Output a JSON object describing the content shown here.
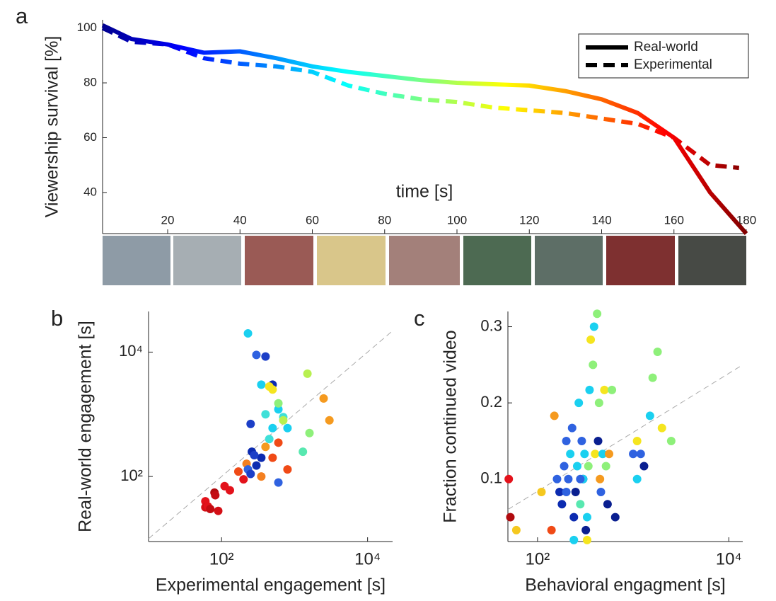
{
  "chart_data": [
    {
      "panel": "a",
      "type": "line",
      "xlabel": "time [s]",
      "ylabel": "Viewership survival [%]",
      "xlim": [
        2,
        180
      ],
      "ylim": [
        25,
        103
      ],
      "xticks": [
        20,
        40,
        60,
        80,
        100,
        120,
        140,
        160,
        180
      ],
      "yticks": [
        40,
        60,
        80,
        100
      ],
      "colormap": "jet",
      "legend": "upper right",
      "series": [
        {
          "name": "Real-world",
          "style": "solid",
          "x": [
            2,
            10,
            20,
            30,
            40,
            50,
            60,
            70,
            80,
            90,
            100,
            110,
            120,
            130,
            140,
            150,
            160,
            170,
            180
          ],
          "values": [
            101,
            96,
            94,
            91,
            91.5,
            89,
            86,
            84,
            82.5,
            81,
            80,
            79.5,
            79,
            77,
            74,
            69,
            60,
            40,
            25
          ]
        },
        {
          "name": "Experimental",
          "style": "dashed",
          "x": [
            2,
            10,
            20,
            30,
            40,
            50,
            60,
            70,
            80,
            90,
            100,
            110,
            120,
            130,
            140,
            150,
            160,
            170,
            178
          ],
          "values": [
            100,
            95,
            94,
            89,
            87,
            86,
            84,
            79,
            76,
            74,
            73,
            71,
            70,
            69,
            67,
            65,
            60,
            50,
            49
          ]
        }
      ]
    },
    {
      "panel": "b",
      "type": "scatter",
      "xlabel": "Experimental engagement [s]",
      "ylabel": "Real-world engagement [s]",
      "xscale": "log",
      "yscale": "log",
      "xlim": [
        10,
        22000
      ],
      "ylim": [
        9,
        45000
      ],
      "xticks": [
        {
          "value": 100,
          "label": "10²"
        },
        {
          "value": 10000,
          "label": "10⁴"
        }
      ],
      "yticks": [
        {
          "value": 100,
          "label": "10²"
        },
        {
          "value": 10000,
          "label": "10⁴"
        }
      ],
      "identity_line": true,
      "x": [
        60,
        60,
        65,
        70,
        80,
        82,
        90,
        110,
        130,
        170,
        200,
        220,
        230,
        250,
        260,
        250,
        300,
        400,
        500,
        600,
        350,
        280,
        300,
        230,
        350,
        400,
        500,
        450,
        600,
        700,
        800,
        1500,
        1300,
        1600,
        700,
        500,
        600,
        450,
        2500,
        3000,
        350,
        600,
        400,
        500,
        800
      ],
      "y": [
        40,
        32,
        33,
        30,
        55,
        50,
        28,
        70,
        60,
        120,
        90,
        160,
        130,
        110,
        250,
        700,
        9000,
        8500,
        3000,
        80,
        200,
        220,
        150,
        20000,
        3000,
        1000,
        600,
        400,
        1200,
        900,
        600,
        4500,
        250,
        500,
        800,
        2500,
        1500,
        2800,
        1800,
        800,
        100,
        350,
        300,
        200,
        130
      ],
      "colors": [
        "#e3121b",
        "#d40f16",
        "#e3121b",
        "#c30c12",
        "#b00a0e",
        "#c30c12",
        "#d40f16",
        "#e3121b",
        "#e3121b",
        "#f04a16",
        "#e3121b",
        "#f48020",
        "#2f62e0",
        "#1c3fc7",
        "#0c2bb0",
        "#1c3fc7",
        "#2f62e0",
        "#1c3fc7",
        "#0c2bb0",
        "#2f62e0",
        "#0c2bb0",
        "#1c3fc7",
        "#0c2bb0",
        "#1ad0f0",
        "#1ad0f0",
        "#3fe0d8",
        "#1ad0f0",
        "#3fe0d8",
        "#1ad0f0",
        "#3fe0d8",
        "#1ad0f0",
        "#b8f050",
        "#58e8b0",
        "#8ef07a",
        "#b8f050",
        "#f5e51f",
        "#8ef07a",
        "#f5e51f",
        "#f59a1f",
        "#f59a1f",
        "#f48020",
        "#f04a16",
        "#f59a1f",
        "#f04a16",
        "#f04a16"
      ]
    },
    {
      "panel": "c",
      "type": "scatter",
      "xlabel": "Behavioral engagment [s]",
      "ylabel": "Fraction continued video",
      "xscale": "log",
      "xlim": [
        49,
        14000
      ],
      "ylim": [
        0.018,
        0.32
      ],
      "xticks": [
        {
          "value": 100,
          "label": "10²"
        },
        {
          "value": 10000,
          "label": "10⁴"
        }
      ],
      "yticks": [
        0.1,
        0.2,
        0.3
      ],
      "x": [
        50,
        52,
        60,
        110,
        140,
        150,
        160,
        170,
        180,
        190,
        200,
        210,
        220,
        230,
        240,
        250,
        260,
        270,
        280,
        290,
        300,
        310,
        320,
        330,
        340,
        350,
        360,
        380,
        390,
        400,
        420,
        430,
        440,
        450,
        460,
        480,
        500,
        520,
        540,
        560,
        600,
        650,
        1000,
        1100,
        1200,
        1300,
        1500,
        1600,
        1800,
        2000,
        2500,
        1100,
        240,
        330,
        300,
        280,
        200
      ],
      "y": [
        0.1,
        0.05,
        0.033,
        0.083,
        0.033,
        0.183,
        0.1,
        0.083,
        0.067,
        0.117,
        0.15,
        0.1,
        0.133,
        0.167,
        0.05,
        0.083,
        0.117,
        0.2,
        0.067,
        0.15,
        0.1,
        0.133,
        0.033,
        0.05,
        0.117,
        0.217,
        0.283,
        0.25,
        0.3,
        0.133,
        0.317,
        0.15,
        0.2,
        0.1,
        0.083,
        0.133,
        0.217,
        0.117,
        0.067,
        0.133,
        0.217,
        0.05,
        0.133,
        0.1,
        0.133,
        0.117,
        0.183,
        0.233,
        0.267,
        0.167,
        0.15,
        0.15,
        0.02,
        0.02,
        0.1,
        0.1,
        0.083
      ],
      "colors": [
        "#e3121b",
        "#b00a0e",
        "#f5c81f",
        "#f5c81f",
        "#f04a16",
        "#f59a1f",
        "#2f62e0",
        "#0c2bb0",
        "#0c2bb0",
        "#2f62e0",
        "#2f62e0",
        "#2f62e0",
        "#1ad0f0",
        "#2f62e0",
        "#0c2bb0",
        "#0a1f90",
        "#1ad0f0",
        "#1ad0f0",
        "#58e8b0",
        "#2f62e0",
        "#0c2bb0",
        "#1ad0f0",
        "#0a1f90",
        "#1ad0f0",
        "#8ef07a",
        "#1ad0f0",
        "#f5e51f",
        "#8ef07a",
        "#1ad0f0",
        "#f5e51f",
        "#8ef07a",
        "#0a1f90",
        "#8ef07a",
        "#f59a1f",
        "#2f62e0",
        "#1ad0f0",
        "#f5e51f",
        "#8ef07a",
        "#0a1f90",
        "#f59a1f",
        "#8ef07a",
        "#0a1f90",
        "#2f62e0",
        "#1ad0f0",
        "#2f62e0",
        "#0a1f90",
        "#1ad0f0",
        "#8ef07a",
        "#8ef07a",
        "#f5e51f",
        "#8ef07a",
        "#f5e51f",
        "#1ad0f0",
        "#f5e51f",
        "#1ad0f0",
        "#2f62e0",
        "#2f62e0"
      ]
    }
  ]
}
